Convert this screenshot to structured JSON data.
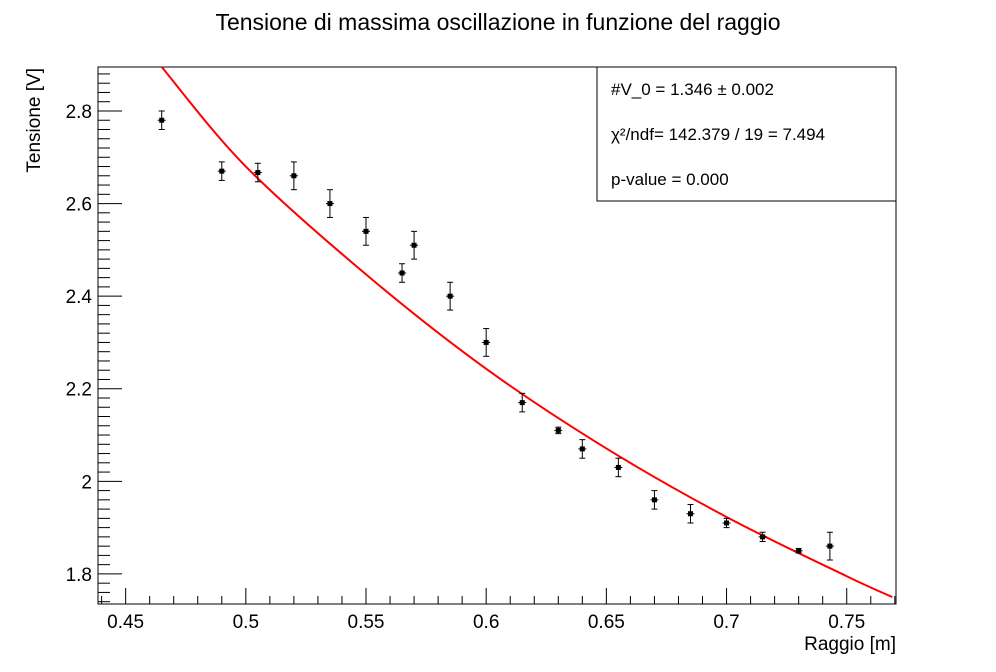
{
  "chart_data": {
    "type": "scatter",
    "title": "Tensione di massima oscillazione in funzione del raggio",
    "xlabel": "Raggio [m]",
    "ylabel": "Tensione [V]",
    "xlim": [
      0.4385,
      0.7705
    ],
    "ylim": [
      1.735,
      2.895
    ],
    "x_ticks": [
      0.45,
      0.5,
      0.55,
      0.6,
      0.65,
      0.7,
      0.75
    ],
    "x_tick_labels": [
      "0.45",
      "0.5",
      "0.55",
      "0.6",
      "0.65",
      "0.7",
      "0.75"
    ],
    "y_ticks": [
      1.8,
      2.0,
      2.2,
      2.4,
      2.6,
      2.8
    ],
    "y_tick_labels": [
      "1.8",
      "2",
      "2.2",
      "2.4",
      "2.6",
      "2.8"
    ],
    "grid": false,
    "series": [
      {
        "type": "errorbar",
        "color": "#000000",
        "x": [
          0.465,
          0.49,
          0.505,
          0.52,
          0.535,
          0.55,
          0.565,
          0.57,
          0.585,
          0.6,
          0.615,
          0.63,
          0.64,
          0.655,
          0.67,
          0.685,
          0.7,
          0.715,
          0.73,
          0.743
        ],
        "y": [
          2.78,
          2.67,
          2.667,
          2.66,
          2.6,
          2.54,
          2.45,
          2.51,
          2.4,
          2.3,
          2.17,
          2.11,
          2.07,
          2.03,
          1.96,
          1.93,
          1.91,
          1.88,
          1.85,
          1.86
        ],
        "yerr": [
          0.02,
          0.02,
          0.02,
          0.03,
          0.03,
          0.03,
          0.02,
          0.03,
          0.03,
          0.03,
          0.02,
          0.007,
          0.02,
          0.02,
          0.02,
          0.02,
          0.01,
          0.01,
          0.005,
          0.03
        ]
      },
      {
        "type": "line",
        "color": "#ff0000",
        "x": [
          0.465,
          0.5,
          0.55,
          0.6,
          0.65,
          0.7,
          0.75,
          0.769
        ],
        "y": [
          2.895,
          2.68,
          2.447,
          2.243,
          2.071,
          1.923,
          1.795,
          1.75
        ]
      }
    ],
    "stats_box": {
      "position": "top-right",
      "lines": [
        "#V_0 = 1.346 ± 0.002",
        "χ²/ndf= 142.379 / 19 = 7.494",
        "p-value = 0.000"
      ]
    }
  }
}
